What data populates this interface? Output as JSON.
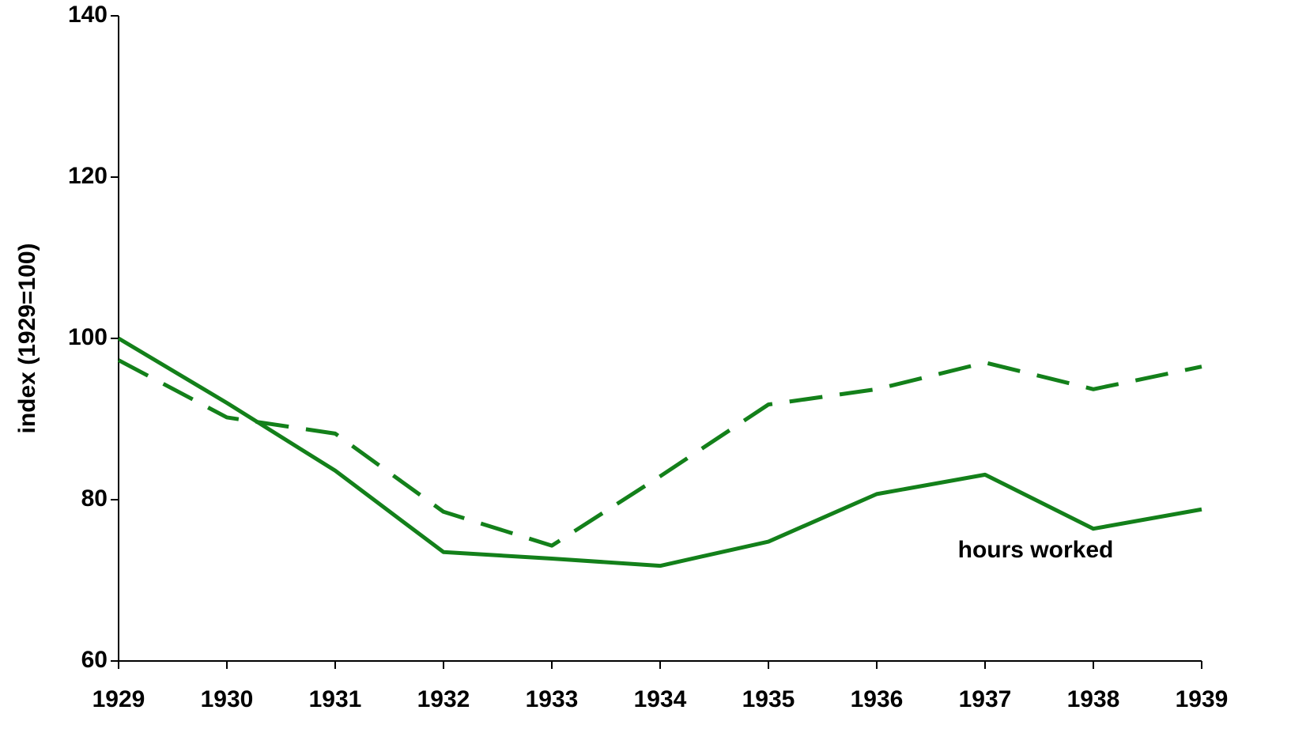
{
  "chart_data": {
    "type": "line",
    "y_label": "index (1929=100)",
    "x": [
      1929,
      1930,
      1931,
      1932,
      1933,
      1934,
      1935,
      1936,
      1937,
      1938,
      1939
    ],
    "xlim": [
      1929,
      1939
    ],
    "xticks": [
      1929,
      1930,
      1931,
      1932,
      1933,
      1934,
      1935,
      1936,
      1937,
      1938,
      1939
    ],
    "ylim": [
      60,
      140
    ],
    "yticks": [
      60,
      80,
      100,
      120,
      140
    ],
    "grid": false,
    "series": [
      {
        "name": "hours worked",
        "color": "#13801a",
        "dashed": false,
        "values": [
          100,
          92,
          83.6,
          73.5,
          72.7,
          71.8,
          74.8,
          80.7,
          83.1,
          76.4,
          78.8
        ]
      },
      {
        "color": "#13801a",
        "dashed": true,
        "values": [
          97.3,
          90.2,
          88.2,
          78.5,
          74.3,
          82.9,
          91.8,
          93.7,
          97.0,
          93.7,
          96.5
        ]
      }
    ]
  }
}
